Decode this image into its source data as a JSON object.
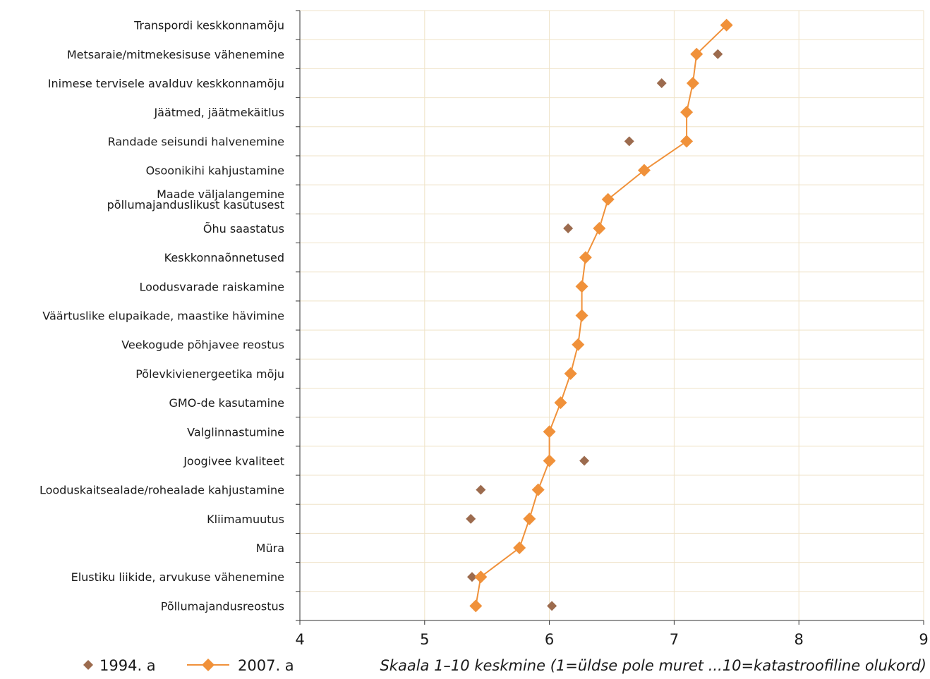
{
  "chart_data": {
    "type": "scatter",
    "orientation": "horizontal",
    "categories": [
      "Transpordi keskkonnamõju",
      "Metsaraie/mitmekesisuse vähenemine",
      "Inimese tervisele avalduv keskkonnamõju",
      "Jäätmed, jäätmekäitlus",
      "Randade seisundi halvenemine",
      "Osoonikihi kahjustamine",
      [
        "Maade väljalangemine",
        "põllumajanduslikust kasutusest"
      ],
      "Õhu saastatus",
      "Keskkonnaõnnetused",
      "Loodusvarade raiskamine",
      "Väärtuslike elupaikade, maastike hävimine",
      "Veekogude põhjavee reostus",
      "Põlevkivienergeetika mõju",
      "GMO-de kasutamine",
      "Valglinnastumine",
      "Joogivee kvaliteet",
      "Looduskaitsealade/rohealade kahjustamine",
      "Kliimamuutus",
      "Müra",
      "Elustiku liikide, arvukuse vähenemine",
      "Põllumajandusreostus"
    ],
    "series": [
      {
        "name": "1994. a",
        "marker": "diamond",
        "line": false,
        "color": "#9c6b4e",
        "values": [
          null,
          7.35,
          6.9,
          null,
          6.64,
          null,
          null,
          6.15,
          null,
          null,
          null,
          null,
          null,
          null,
          null,
          6.28,
          5.45,
          5.37,
          null,
          5.38,
          6.02
        ]
      },
      {
        "name": "2007. a",
        "marker": "diamond",
        "line": true,
        "color": "#f0913a",
        "values": [
          7.42,
          7.18,
          7.15,
          7.1,
          7.1,
          6.76,
          6.47,
          6.4,
          6.29,
          6.26,
          6.26,
          6.23,
          6.17,
          6.09,
          6.0,
          6.0,
          5.91,
          5.84,
          5.76,
          5.45,
          5.41
        ]
      }
    ],
    "xlim": [
      4,
      9
    ],
    "xticks": [
      "4",
      "5",
      "6",
      "7",
      "8",
      "9"
    ],
    "grid": true,
    "legend_position": "bottom-left",
    "note": "Skaala 1–10 keskmine (1=üldse pole muret ...10=katastroofiline olukord)",
    "colors": {
      "grid": "#efe3c8",
      "axis": "#333333",
      "line_2007": "#f0913a",
      "marker_1994": "#9c6b4e"
    }
  }
}
